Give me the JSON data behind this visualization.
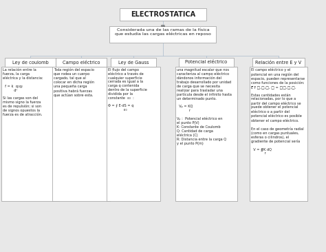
{
  "title": "ELECTROSTATICA",
  "subtitle": "es",
  "definition": "Considerada una de las ramas de la física\nque estudia las cargas eléctricas en reposo",
  "bg_color": "#e8e8e8",
  "box_color": "#ffffff",
  "box_edge_color": "#999999",
  "line_color": "#aabbcc",
  "text_color": "#222222",
  "title_fontsize": 7.0,
  "label_fontsize": 4.8,
  "content_fontsize": 3.6,
  "def_fontsize": 4.6,
  "branches": [
    {
      "label": "Ley de coulomb",
      "content": "La relación entre la\nfuerza, la carga\neléctrica y la distancia:\n\n  f = k  q₁q₂\n          d²\n\nSi las cargas son del\nmismo signo la fuerza\nes de repulsión; si son\nde signos opuestos la\nfuerza es de atracción."
    },
    {
      "label": "Campo eléctrico",
      "content": "Toda región del espacio\nque rodea un cuerpo\ncargado, tal que al\ncolocar en dicha región\nuna pequeña carga\npositiva habrá fuerzas\nque actúan sobre esta."
    },
    {
      "label": "Ley de Gauss",
      "content": "El flujo del campo\neléctrico a través de\ncualquier superficie\ncerrada es igual a la\ncarga q contenida\ndentro de la superficie\ndividida por la\nconstante  ε₀  :\n\nΦ = ∮ E·dS = q\n              ε₀"
    },
    {
      "label": "Potencial eléctrico",
      "content": "una magnitud escalar que nos\ncaracteriza al campo eléctrico\ndándonos información del\ntrabajo desarrollado por unidad\nde carga que se necesita\nrealizar para trasladar una\npartícula desde el infinito hasta\nun determinado punto.\n\n  Vₚ = KQ\n           r\n\nVₚ :  Potencial eléctrico en\nel punto P(V)\nK: Constante de Coulomb\nQ: Cantidad de carga\neléctrica (C)\nR: Distancia entre la carga Q\ny el punto P(m)"
    },
    {
      "label": "Relación entre E y V",
      "content": "El campo eléctrico y el\npotencial en una región del\nespacio, pueden representarse\ncomo funciones de la posición:\nE⃗ r⃗ □,□,□, □ = □□,□,□.\n\nEstas cantidades están\nrelacionadas, por lo que a\npartir del campo eléctrico se\npuede obtener el potencial\neléctrico o a partir del\npotencial eléctrico es posible\nobtener el campo eléctrico.\n\nEn el caso de geometría radial\n(como en cargas puntuales,\nesferas o cilindros), el\ngradiente de potencial sería\n\n  V = ∯K dQ\n            r"
    }
  ]
}
